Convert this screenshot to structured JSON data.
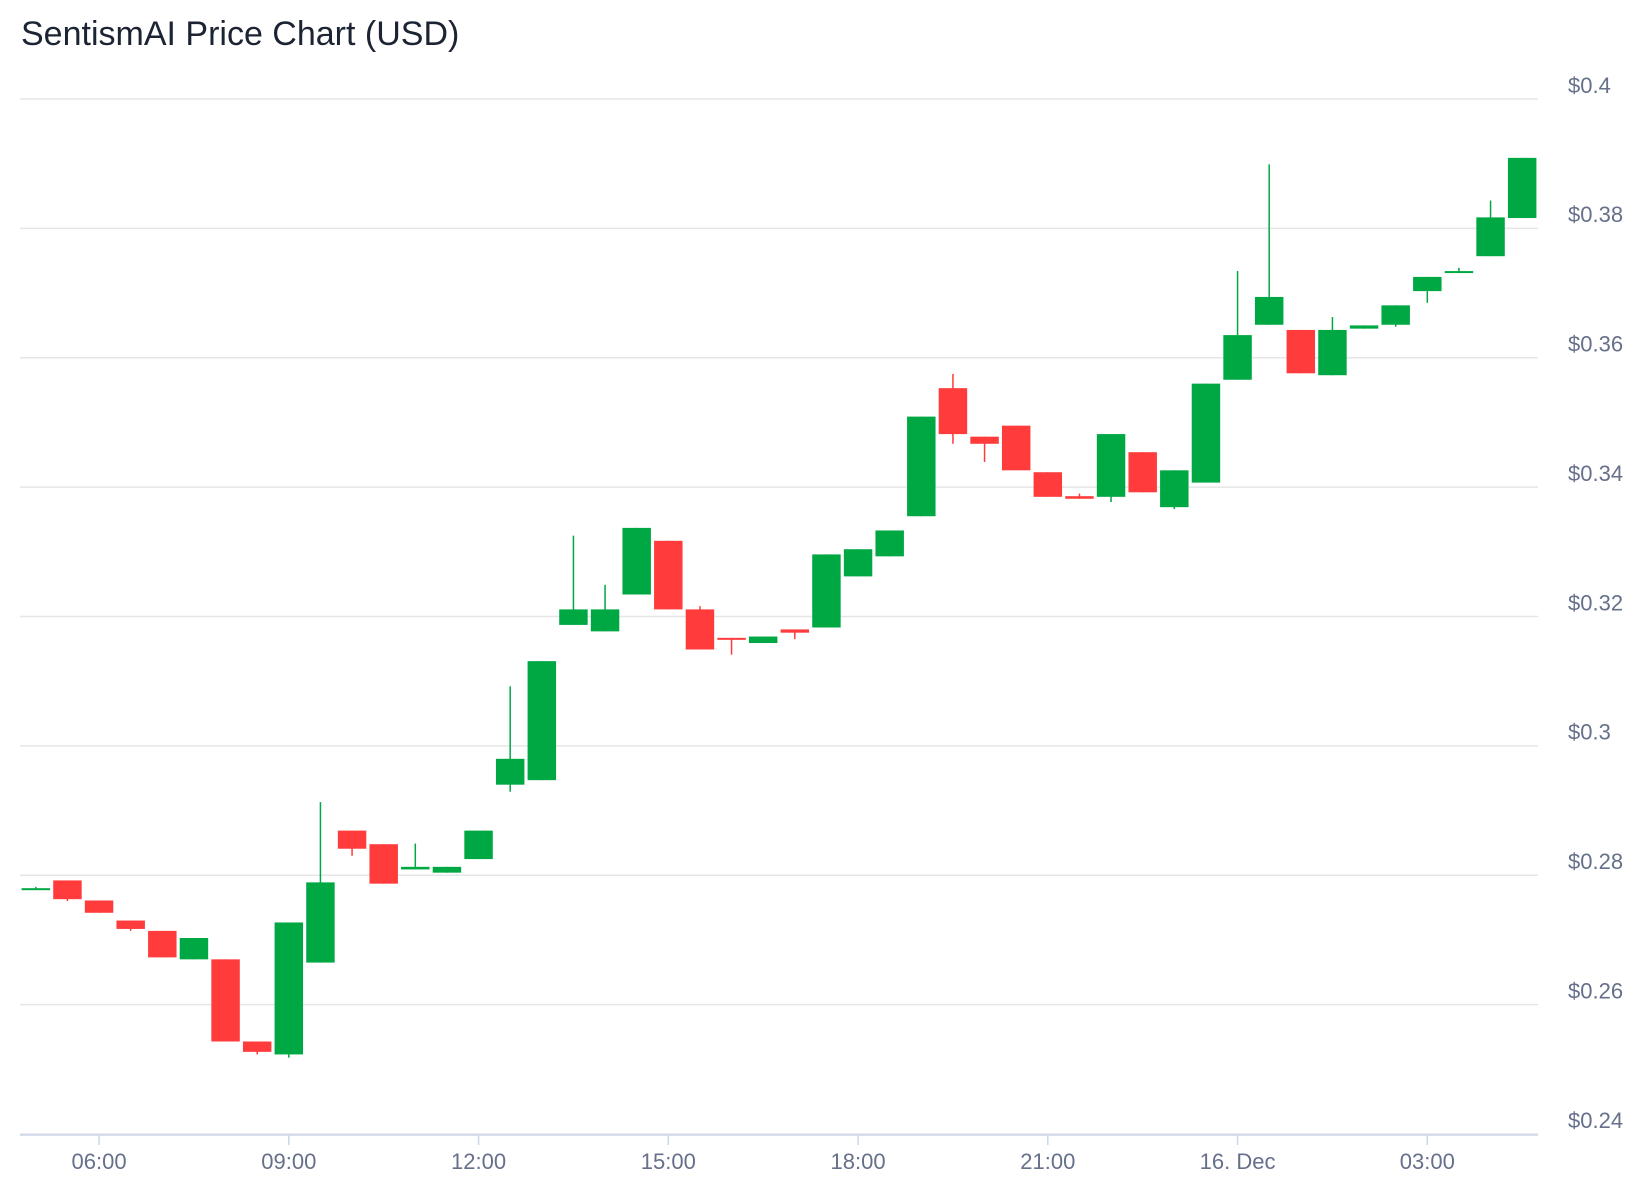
{
  "chart_data": {
    "type": "candlestick",
    "title": "SentismAI Price Chart (USD)",
    "categories": [
      null,
      null,
      "06:00",
      null,
      null,
      null,
      null,
      null,
      "09:00",
      null,
      null,
      null,
      null,
      null,
      "12:00",
      null,
      null,
      null,
      null,
      null,
      "15:00",
      null,
      null,
      null,
      null,
      null,
      "18:00",
      null,
      null,
      null,
      null,
      null,
      "21:00",
      null,
      null,
      null,
      null,
      null,
      "16. Dec",
      null,
      null,
      null,
      null,
      null,
      "03:00",
      null,
      null,
      null
    ],
    "open": [
      0.2779,
      0.2792,
      0.2761,
      0.273,
      0.2714,
      0.267,
      0.267,
      0.2543,
      0.2523,
      0.2665,
      0.2869,
      0.2848,
      0.2809,
      0.2804,
      0.2825,
      0.294,
      0.2947,
      0.3187,
      0.3177,
      0.3234,
      0.3317,
      0.3211,
      0.3167,
      0.3159,
      0.318,
      0.3183,
      0.3262,
      0.3293,
      0.3355,
      0.3553,
      0.3478,
      0.3495,
      0.3423,
      0.3386,
      0.3385,
      0.3454,
      0.3369,
      0.3407,
      0.3566,
      0.3651,
      0.3643,
      0.3573,
      0.3645,
      0.3651,
      0.3703,
      0.3731,
      0.3757,
      0.3816
    ],
    "high": [
      0.2782,
      0.2792,
      0.2761,
      0.273,
      0.2714,
      0.2703,
      0.267,
      0.2543,
      0.2727,
      0.2913,
      0.2869,
      0.2848,
      0.2849,
      0.2813,
      0.2869,
      0.3092,
      0.3131,
      0.3325,
      0.3249,
      0.3337,
      0.3317,
      0.3216,
      0.3167,
      0.3169,
      0.318,
      0.3296,
      0.3304,
      0.3333,
      0.3509,
      0.3575,
      0.3478,
      0.3495,
      0.3423,
      0.339,
      0.3482,
      0.3454,
      0.3426,
      0.356,
      0.3734,
      0.3899,
      0.3643,
      0.3663,
      0.365,
      0.3681,
      0.3725,
      0.3739,
      0.3843,
      0.3909
    ],
    "low": [
      0.2778,
      0.276,
      0.2742,
      0.2714,
      0.2673,
      0.267,
      0.2543,
      0.2523,
      0.2518,
      0.2665,
      0.283,
      0.2787,
      0.2809,
      0.2804,
      0.2825,
      0.2929,
      0.2947,
      0.3187,
      0.3177,
      0.3234,
      0.3211,
      0.3149,
      0.3141,
      0.3159,
      0.3165,
      0.3183,
      0.3262,
      0.3293,
      0.3355,
      0.3467,
      0.3439,
      0.3426,
      0.3385,
      0.3382,
      0.3377,
      0.3392,
      0.3366,
      0.3407,
      0.3566,
      0.3651,
      0.3576,
      0.3573,
      0.3645,
      0.3648,
      0.3685,
      0.3731,
      0.3757,
      0.3816
    ],
    "close": [
      0.278,
      0.2763,
      0.2742,
      0.2717,
      0.2673,
      0.2703,
      0.2543,
      0.2527,
      0.2727,
      0.2789,
      0.2841,
      0.2787,
      0.2813,
      0.2813,
      0.2869,
      0.298,
      0.3131,
      0.3211,
      0.3211,
      0.3337,
      0.3211,
      0.3149,
      0.3164,
      0.3169,
      0.3175,
      0.3296,
      0.3304,
      0.3333,
      0.3509,
      0.3482,
      0.3467,
      0.3426,
      0.3385,
      0.3382,
      0.3482,
      0.3392,
      0.3426,
      0.356,
      0.3635,
      0.3694,
      0.3576,
      0.3643,
      0.365,
      0.3681,
      0.3725,
      0.3734,
      0.3817,
      0.3909
    ],
    "up_color": "#00a843",
    "down_color": "#ff3b3b",
    "ylim": [
      0.24,
      0.4
    ],
    "yticks": [
      {
        "value": 0.24,
        "label": "$0.24"
      },
      {
        "value": 0.26,
        "label": "$0.26"
      },
      {
        "value": 0.28,
        "label": "$0.28"
      },
      {
        "value": 0.3,
        "label": "$0.3"
      },
      {
        "value": 0.32,
        "label": "$0.32"
      },
      {
        "value": 0.34,
        "label": "$0.34"
      },
      {
        "value": 0.36,
        "label": "$0.36"
      },
      {
        "value": 0.38,
        "label": "$0.38"
      },
      {
        "value": 0.4,
        "label": "$0.4"
      }
    ],
    "grid": true
  }
}
